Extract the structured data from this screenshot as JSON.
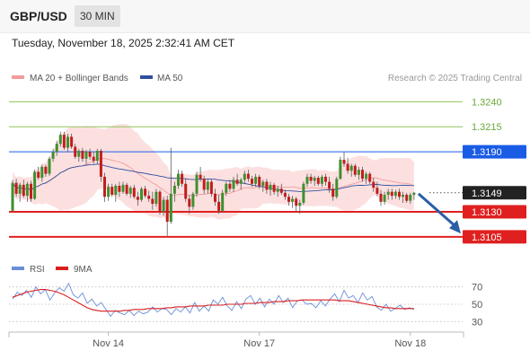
{
  "header": {
    "symbol": "GBP/USD",
    "timeframe": "30 MIN"
  },
  "timestamp": "Tuesday, November 18, 2025 2:32:41 AM CET",
  "legend": {
    "bollinger": "MA 20 + Bollinger Bands",
    "ma50": "MA 50",
    "credit": "Research © 2025 Trading Central"
  },
  "rsi_legend": {
    "rsi": "RSI",
    "ma": "9MA"
  },
  "chart_data": [
    {
      "type": "candlestick",
      "title": "GBP/USD",
      "ylim": [
        1.3095,
        1.3252
      ],
      "x_labels": [
        "Nov 14",
        "Nov 17",
        "Nov 18"
      ],
      "price_levels": [
        {
          "value": 1.324,
          "label": "1.3240",
          "kind": "target",
          "color": "#8fc45a"
        },
        {
          "value": 1.3215,
          "label": "1.3215",
          "kind": "target",
          "color": "#8fc45a"
        },
        {
          "value": 1.319,
          "label": "1.3190",
          "kind": "pivot",
          "color": "#1a5ce6"
        },
        {
          "value": 1.3149,
          "label": "1.3149",
          "kind": "last",
          "color": "#222222"
        },
        {
          "value": 1.313,
          "label": "1.3130",
          "kind": "support",
          "color": "#e02020"
        },
        {
          "value": 1.3105,
          "label": "1.3105",
          "kind": "support",
          "color": "#e02020"
        }
      ],
      "forecast_arrow": {
        "from": 1.3148,
        "to": 1.311,
        "color": "#2b5ea7"
      },
      "series": [
        {
          "name": "MA 20 + Bollinger Bands",
          "color": "#f08c8c"
        },
        {
          "name": "MA 50",
          "color": "#2f4f9f"
        }
      ],
      "candles": [
        [
          1.3131,
          1.3162,
          1.313,
          1.3159
        ],
        [
          1.3159,
          1.3163,
          1.3145,
          1.3148
        ],
        [
          1.3148,
          1.3159,
          1.314,
          1.3157
        ],
        [
          1.3157,
          1.3162,
          1.3144,
          1.3146
        ],
        [
          1.3146,
          1.316,
          1.314,
          1.3158
        ],
        [
          1.3158,
          1.3161,
          1.314,
          1.3143
        ],
        [
          1.3143,
          1.3172,
          1.3142,
          1.317
        ],
        [
          1.317,
          1.3175,
          1.3162,
          1.3164
        ],
        [
          1.3164,
          1.3177,
          1.316,
          1.3175
        ],
        [
          1.3175,
          1.3177,
          1.3165,
          1.3168
        ],
        [
          1.3168,
          1.3185,
          1.3166,
          1.3183
        ],
        [
          1.3183,
          1.3193,
          1.318,
          1.319
        ],
        [
          1.319,
          1.3201,
          1.3186,
          1.3198
        ],
        [
          1.3198,
          1.321,
          1.3195,
          1.3207
        ],
        [
          1.3207,
          1.321,
          1.3192,
          1.3194
        ],
        [
          1.3194,
          1.3208,
          1.319,
          1.3205
        ],
        [
          1.3205,
          1.3208,
          1.3193,
          1.3195
        ],
        [
          1.3195,
          1.3198,
          1.3183,
          1.3185
        ],
        [
          1.3185,
          1.3193,
          1.318,
          1.3191
        ],
        [
          1.3191,
          1.3194,
          1.318,
          1.3183
        ],
        [
          1.3183,
          1.3192,
          1.3178,
          1.319
        ],
        [
          1.319,
          1.3193,
          1.3182,
          1.3185
        ],
        [
          1.3185,
          1.319,
          1.3178,
          1.3181
        ],
        [
          1.3181,
          1.3193,
          1.3178,
          1.3191
        ],
        [
          1.3191,
          1.3193,
          1.316,
          1.3165
        ],
        [
          1.3165,
          1.3169,
          1.314,
          1.3145
        ],
        [
          1.3145,
          1.3158,
          1.3141,
          1.3155
        ],
        [
          1.3155,
          1.3158,
          1.3145,
          1.3147
        ],
        [
          1.3147,
          1.3158,
          1.314,
          1.3156
        ],
        [
          1.3156,
          1.316,
          1.3145,
          1.315
        ],
        [
          1.315,
          1.316,
          1.3148,
          1.3157
        ],
        [
          1.3157,
          1.3159,
          1.3146,
          1.3148
        ],
        [
          1.3148,
          1.3156,
          1.3144,
          1.3154
        ],
        [
          1.3154,
          1.3157,
          1.3143,
          1.3145
        ],
        [
          1.3145,
          1.315,
          1.3136,
          1.3142
        ],
        [
          1.3142,
          1.3155,
          1.314,
          1.3153
        ],
        [
          1.3153,
          1.3156,
          1.3144,
          1.3146
        ],
        [
          1.3146,
          1.3151,
          1.314,
          1.3143
        ],
        [
          1.3143,
          1.315,
          1.3132,
          1.3138
        ],
        [
          1.3138,
          1.3153,
          1.3135,
          1.315
        ],
        [
          1.315,
          1.3152,
          1.3127,
          1.313
        ],
        [
          1.313,
          1.3145,
          1.3126,
          1.3142
        ],
        [
          1.3142,
          1.3146,
          1.3106,
          1.312
        ],
        [
          1.312,
          1.3194,
          1.3118,
          1.3148
        ],
        [
          1.3148,
          1.316,
          1.314,
          1.3156
        ],
        [
          1.3156,
          1.3172,
          1.3153,
          1.3168
        ],
        [
          1.3168,
          1.3171,
          1.3155,
          1.3158
        ],
        [
          1.3158,
          1.3163,
          1.314,
          1.3143
        ],
        [
          1.3143,
          1.3147,
          1.3128,
          1.3135
        ],
        [
          1.3135,
          1.315,
          1.3132,
          1.3148
        ],
        [
          1.3148,
          1.317,
          1.3145,
          1.3167
        ],
        [
          1.3167,
          1.3175,
          1.316,
          1.3163
        ],
        [
          1.3163,
          1.3166,
          1.3148,
          1.3152
        ],
        [
          1.3152,
          1.3162,
          1.3148,
          1.316
        ],
        [
          1.316,
          1.3163,
          1.3145,
          1.3148
        ],
        [
          1.3148,
          1.3153,
          1.3136,
          1.314
        ],
        [
          1.314,
          1.3147,
          1.3128,
          1.3131
        ],
        [
          1.3131,
          1.3152,
          1.3129,
          1.3149
        ],
        [
          1.3149,
          1.316,
          1.3146,
          1.3158
        ],
        [
          1.3158,
          1.3162,
          1.315,
          1.3153
        ],
        [
          1.3153,
          1.3165,
          1.315,
          1.3162
        ],
        [
          1.3162,
          1.3168,
          1.3156,
          1.3158
        ],
        [
          1.3158,
          1.3164,
          1.3152,
          1.3162
        ],
        [
          1.3162,
          1.3171,
          1.3158,
          1.3168
        ],
        [
          1.3168,
          1.3172,
          1.316,
          1.3163
        ],
        [
          1.3163,
          1.3166,
          1.3155,
          1.3158
        ],
        [
          1.3158,
          1.3168,
          1.3155,
          1.3165
        ],
        [
          1.3165,
          1.3167,
          1.3153,
          1.3156
        ],
        [
          1.3156,
          1.3162,
          1.315,
          1.316
        ],
        [
          1.316,
          1.3163,
          1.3148,
          1.3152
        ],
        [
          1.3152,
          1.316,
          1.3146,
          1.3157
        ],
        [
          1.3157,
          1.3159,
          1.3147,
          1.315
        ],
        [
          1.315,
          1.3156,
          1.3145,
          1.3153
        ],
        [
          1.3153,
          1.3158,
          1.3147,
          1.3149
        ],
        [
          1.3149,
          1.3152,
          1.3142,
          1.3145
        ],
        [
          1.3145,
          1.3148,
          1.3136,
          1.314
        ],
        [
          1.314,
          1.3146,
          1.3134,
          1.3143
        ],
        [
          1.3143,
          1.3145,
          1.313,
          1.3136
        ],
        [
          1.3136,
          1.3142,
          1.3128,
          1.3139
        ],
        [
          1.3139,
          1.316,
          1.3137,
          1.3158
        ],
        [
          1.3158,
          1.3168,
          1.3155,
          1.3165
        ],
        [
          1.3165,
          1.3168,
          1.3158,
          1.3161
        ],
        [
          1.3161,
          1.3166,
          1.3156,
          1.3164
        ],
        [
          1.3164,
          1.3166,
          1.3156,
          1.3158
        ],
        [
          1.3158,
          1.3167,
          1.3155,
          1.3165
        ],
        [
          1.3165,
          1.3168,
          1.3156,
          1.316
        ],
        [
          1.316,
          1.3165,
          1.3149,
          1.3153
        ],
        [
          1.3153,
          1.3158,
          1.3141,
          1.3145
        ],
        [
          1.3145,
          1.3165,
          1.3143,
          1.3163
        ],
        [
          1.3163,
          1.3185,
          1.3162,
          1.3182
        ],
        [
          1.3182,
          1.319,
          1.3175,
          1.3178
        ],
        [
          1.3178,
          1.3184,
          1.3168,
          1.3171
        ],
        [
          1.3171,
          1.3178,
          1.3165,
          1.3176
        ],
        [
          1.3176,
          1.3178,
          1.3165,
          1.3167
        ],
        [
          1.3167,
          1.3175,
          1.3162,
          1.3172
        ],
        [
          1.3172,
          1.3175,
          1.316,
          1.3163
        ],
        [
          1.3163,
          1.317,
          1.3158,
          1.3168
        ],
        [
          1.3168,
          1.317,
          1.3158,
          1.316
        ],
        [
          1.316,
          1.3164,
          1.315,
          1.3154
        ],
        [
          1.3154,
          1.316,
          1.3146,
          1.3148
        ],
        [
          1.3148,
          1.3152,
          1.3136,
          1.314
        ],
        [
          1.314,
          1.315,
          1.3137,
          1.3147
        ],
        [
          1.3147,
          1.3153,
          1.3142,
          1.315
        ],
        [
          1.315,
          1.3153,
          1.3142,
          1.3146
        ],
        [
          1.3146,
          1.3152,
          1.3143,
          1.315
        ],
        [
          1.315,
          1.3153,
          1.3142,
          1.3145
        ],
        [
          1.3145,
          1.315,
          1.3139,
          1.3147
        ],
        [
          1.3147,
          1.3149,
          1.3139,
          1.3141
        ],
        [
          1.3141,
          1.3149,
          1.3138,
          1.3147
        ],
        [
          1.3147,
          1.315,
          1.3142,
          1.3149
        ]
      ]
    },
    {
      "type": "line",
      "title": "RSI",
      "ylim": [
        20,
        80
      ],
      "y_ticks": [
        70,
        50,
        30
      ],
      "series": [
        {
          "name": "RSI",
          "color": "#6a8fd8",
          "values": [
            56,
            64,
            60,
            66,
            58,
            70,
            62,
            67,
            55,
            63,
            69,
            65,
            74,
            61,
            57,
            63,
            51,
            56,
            48,
            52,
            44,
            36,
            43,
            40,
            38,
            43,
            37,
            42,
            39,
            41,
            47,
            41,
            45,
            44,
            38,
            45,
            41,
            47,
            40,
            52,
            42,
            48,
            42,
            55,
            50,
            58,
            48,
            43,
            53,
            45,
            56,
            60,
            50,
            57,
            47,
            56,
            50,
            60,
            52,
            57,
            46,
            54,
            55,
            50,
            51,
            46,
            54,
            48,
            56,
            62,
            53,
            66,
            57,
            60,
            52,
            63,
            55,
            59,
            47,
            43,
            50,
            42,
            45,
            49,
            44,
            46,
            44
          ]
        },
        {
          "name": "9MA",
          "color": "#d91e1e",
          "values": [
            58,
            60,
            62,
            64,
            65,
            66,
            67,
            67,
            66,
            65,
            63,
            61,
            58,
            55,
            52,
            49,
            46,
            44,
            43,
            42,
            42,
            42,
            42,
            42,
            43,
            43,
            44,
            44,
            44,
            45,
            45,
            45,
            45,
            46,
            46,
            47,
            47,
            47,
            48,
            48,
            48,
            48,
            49,
            49,
            49,
            49,
            50,
            50,
            50,
            50,
            51,
            51,
            51,
            52,
            52,
            52,
            53,
            53,
            53,
            54,
            54,
            54,
            55,
            55,
            55,
            55,
            55,
            55,
            55,
            55,
            54,
            54,
            54,
            53,
            52,
            51,
            50,
            49,
            48,
            47,
            46,
            46,
            45,
            45,
            45,
            45,
            45
          ]
        }
      ]
    }
  ]
}
